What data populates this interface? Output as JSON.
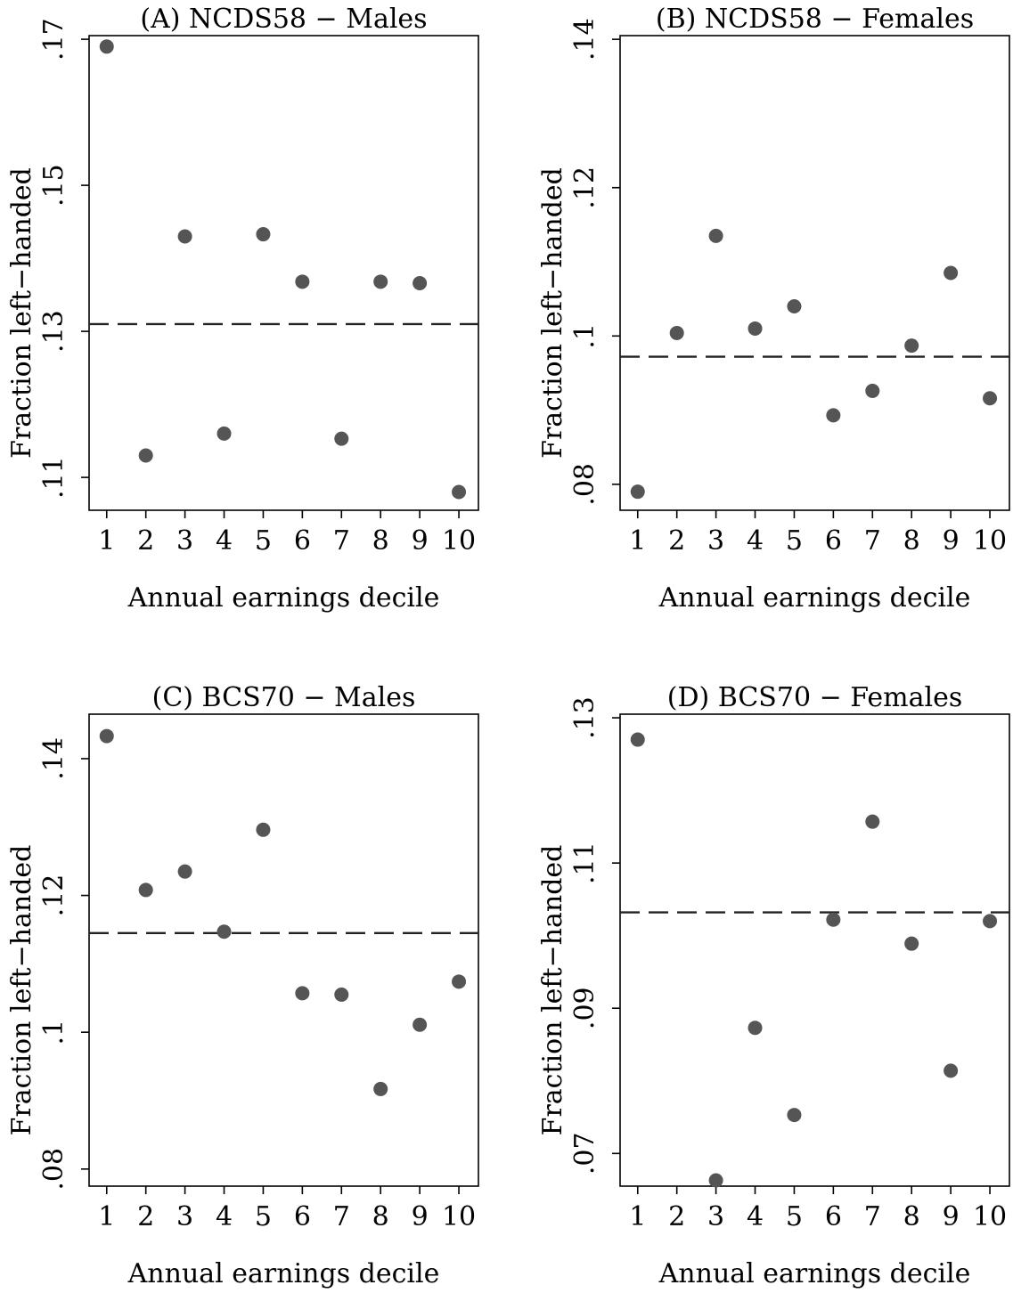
{
  "chart_data": [
    {
      "type": "scatter",
      "title": "(A) NCDS58 − Males",
      "xlabel": "Annual earnings decile",
      "ylabel": "Fraction left−handed",
      "x": [
        1,
        2,
        3,
        4,
        5,
        6,
        7,
        8,
        9,
        10
      ],
      "y": [
        0.169,
        0.113,
        0.143,
        0.116,
        0.1433,
        0.1368,
        0.1153,
        0.1368,
        0.1366,
        0.108
      ],
      "reference_line": 0.131,
      "xticks": [
        "1",
        "2",
        "3",
        "4",
        "5",
        "6",
        "7",
        "8",
        "9",
        "10"
      ],
      "yticks": [
        0.11,
        0.13,
        0.15,
        0.17
      ],
      "ytick_labels": [
        ".11",
        ".13",
        ".15",
        ".17"
      ],
      "xlim": [
        0.55,
        10.5
      ],
      "ylim": [
        0.1055,
        0.1705
      ],
      "marker_color": "#555555"
    },
    {
      "type": "scatter",
      "title": "(B) NCDS58 − Females",
      "xlabel": "Annual earnings decile",
      "ylabel": "Fraction left−handed",
      "x": [
        1,
        2,
        3,
        4,
        5,
        6,
        7,
        8,
        9,
        10
      ],
      "y": [
        0.079,
        0.1004,
        0.1135,
        0.101,
        0.104,
        0.0893,
        0.0926,
        0.0987,
        0.1085,
        0.0916
      ],
      "reference_line": 0.0972,
      "xticks": [
        "1",
        "2",
        "3",
        "4",
        "5",
        "6",
        "7",
        "8",
        "9",
        "10"
      ],
      "yticks": [
        0.08,
        0.1,
        0.12,
        0.14
      ],
      "ytick_labels": [
        ".08",
        ".1",
        ".12",
        ".14"
      ],
      "xlim": [
        0.55,
        10.5
      ],
      "ylim": [
        0.0765,
        0.1405
      ],
      "marker_color": "#555555"
    },
    {
      "type": "scatter",
      "title": "(C) BCS70 − Males",
      "xlabel": "Annual earnings decile",
      "ylabel": "Fraction left−handed",
      "x": [
        1,
        2,
        3,
        4,
        5,
        6,
        7,
        8,
        9,
        10
      ],
      "y": [
        0.1433,
        0.1208,
        0.1235,
        0.1147,
        0.1296,
        0.1057,
        0.1055,
        0.0917,
        0.1011,
        0.1074
      ],
      "reference_line": 0.1145,
      "xticks": [
        "1",
        "2",
        "3",
        "4",
        "5",
        "6",
        "7",
        "8",
        "9",
        "10"
      ],
      "yticks": [
        0.08,
        0.1,
        0.12,
        0.14
      ],
      "ytick_labels": [
        ".08",
        ".1",
        ".12",
        ".14"
      ],
      "xlim": [
        0.55,
        10.5
      ],
      "ylim": [
        0.0775,
        0.1465
      ],
      "marker_color": "#555555"
    },
    {
      "type": "scatter",
      "title": "(D) BCS70 − Females",
      "xlabel": "Annual earnings decile",
      "ylabel": "Fraction left−handed",
      "x": [
        1,
        2,
        3,
        4,
        5,
        6,
        7,
        8,
        9,
        10
      ],
      "y": [
        0.127,
        null,
        0.0663,
        0.0873,
        0.0753,
        0.1022,
        0.1157,
        0.0989,
        0.0814,
        0.102
      ],
      "reference_line": 0.1032,
      "xticks": [
        "1",
        "2",
        "3",
        "4",
        "5",
        "6",
        "7",
        "8",
        "9",
        "10"
      ],
      "yticks": [
        0.07,
        0.09,
        0.11,
        0.13
      ],
      "ytick_labels": [
        ".07",
        ".09",
        ".11",
        ".13"
      ],
      "xlim": [
        0.55,
        10.5
      ],
      "ylim": [
        0.0655,
        0.1305
      ],
      "marker_color": "#555555"
    }
  ]
}
